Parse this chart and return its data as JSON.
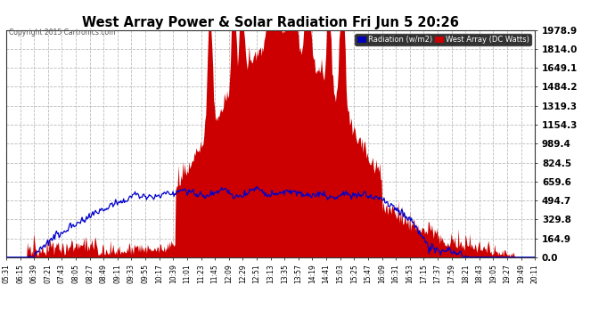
{
  "title": "West Array Power & Solar Radiation Fri Jun 5 20:26",
  "copyright": "Copyright 2015 Cartronics.com",
  "legend_radiation": "Radiation (w/m2)",
  "legend_west": "West Array (DC Watts)",
  "legend_bg_radiation": "#0000bb",
  "legend_bg_west": "#cc0000",
  "y_max": 1978.9,
  "y_ticks": [
    0.0,
    164.9,
    329.8,
    494.7,
    659.6,
    824.5,
    989.4,
    1154.3,
    1319.3,
    1484.2,
    1649.1,
    1814.0,
    1978.9
  ],
  "y_tick_labels": [
    "0.0",
    "164.9",
    "329.8",
    "494.7",
    "659.6",
    "824.5",
    "989.4",
    "1154.3",
    "1319.3",
    "1484.2",
    "1649.1",
    "1814.0",
    "1978.9"
  ],
  "bg_color": "#ffffff",
  "plot_bg_color": "#ffffff",
  "grid_color": "#aaaaaa",
  "fill_color_west": "#cc0000",
  "line_color_radiation": "#0000cc",
  "title_color": "#000000",
  "tick_label_color": "#000000",
  "x_tick_labels": [
    "05:31",
    "06:15",
    "06:39",
    "07:21",
    "07:43",
    "08:05",
    "08:27",
    "08:49",
    "09:11",
    "09:33",
    "09:55",
    "10:17",
    "10:39",
    "11:01",
    "11:23",
    "11:45",
    "12:09",
    "12:29",
    "12:51",
    "13:13",
    "13:35",
    "13:57",
    "14:19",
    "14:41",
    "15:03",
    "15:25",
    "15:47",
    "16:09",
    "16:31",
    "16:53",
    "17:15",
    "17:37",
    "17:59",
    "18:21",
    "18:43",
    "19:05",
    "19:27",
    "19:49",
    "20:11"
  ]
}
